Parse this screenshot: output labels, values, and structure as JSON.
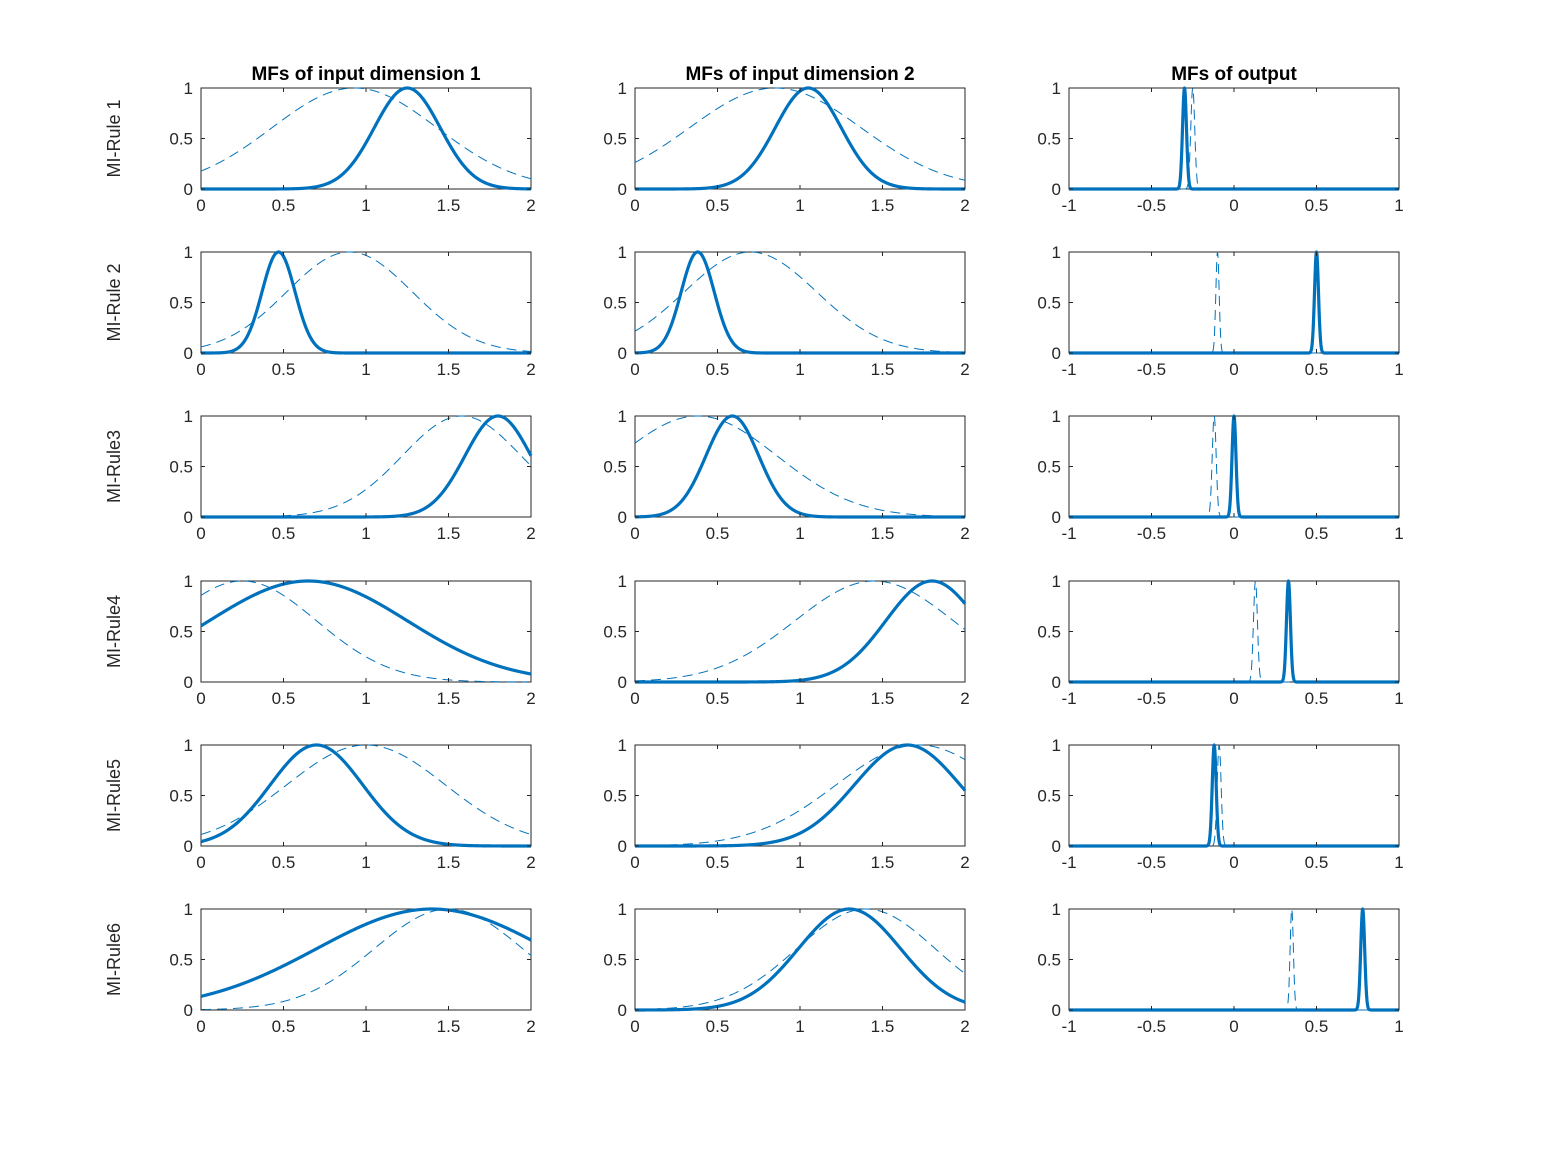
{
  "colors": {
    "line": "#0072BD",
    "axis": "#262626",
    "background": "#ffffff"
  },
  "chart_data": [
    {
      "type": "line",
      "row": 0,
      "col": 0,
      "title": "MFs of input dimension 1",
      "ylabel": "MI-Rule 1",
      "xlim": [
        0,
        2
      ],
      "ylim": [
        0,
        1
      ],
      "xticks": [
        "0",
        "0.5",
        "1",
        "1.5",
        "2"
      ],
      "yticks": [
        "0",
        "0.5",
        "1"
      ],
      "series": [
        {
          "style": "solid",
          "gaussian": {
            "center": 1.25,
            "sigma": 0.2
          }
        },
        {
          "style": "dashed",
          "gaussian": {
            "center": 0.93,
            "sigma": 0.5
          }
        }
      ]
    },
    {
      "type": "line",
      "row": 0,
      "col": 1,
      "title": "MFs of input dimension 2",
      "ylabel": "",
      "xlim": [
        0,
        2
      ],
      "ylim": [
        0,
        1
      ],
      "xticks": [
        "0",
        "0.5",
        "1",
        "1.5",
        "2"
      ],
      "yticks": [
        "0",
        "0.5",
        "1"
      ],
      "series": [
        {
          "style": "solid",
          "gaussian": {
            "center": 1.05,
            "sigma": 0.2
          }
        },
        {
          "style": "dashed",
          "gaussian": {
            "center": 0.85,
            "sigma": 0.52
          }
        }
      ]
    },
    {
      "type": "line",
      "row": 0,
      "col": 2,
      "title": "MFs of output",
      "ylabel": "",
      "xlim": [
        -1,
        1
      ],
      "ylim": [
        0,
        1
      ],
      "xticks": [
        "-1",
        "-0.5",
        "0",
        "0.5",
        "1"
      ],
      "yticks": [
        "0",
        "0.5",
        "1"
      ],
      "series": [
        {
          "style": "solid",
          "gaussian": {
            "center": -0.3,
            "sigma": 0.012
          }
        },
        {
          "style": "dashed",
          "gaussian": {
            "center": -0.25,
            "sigma": 0.012
          }
        }
      ]
    },
    {
      "type": "line",
      "row": 1,
      "col": 0,
      "title": "",
      "ylabel": "MI-Rule 2",
      "xlim": [
        0,
        2
      ],
      "ylim": [
        0,
        1
      ],
      "xticks": [
        "0",
        "0.5",
        "1",
        "1.5",
        "2"
      ],
      "yticks": [
        "0",
        "0.5",
        "1"
      ],
      "series": [
        {
          "style": "solid",
          "gaussian": {
            "center": 0.47,
            "sigma": 0.1
          }
        },
        {
          "style": "dashed",
          "gaussian": {
            "center": 0.9,
            "sigma": 0.38
          }
        }
      ]
    },
    {
      "type": "line",
      "row": 1,
      "col": 1,
      "title": "",
      "ylabel": "",
      "xlim": [
        0,
        2
      ],
      "ylim": [
        0,
        1
      ],
      "xticks": [
        "0",
        "0.5",
        "1",
        "1.5",
        "2"
      ],
      "yticks": [
        "0",
        "0.5",
        "1"
      ],
      "series": [
        {
          "style": "solid",
          "gaussian": {
            "center": 0.38,
            "sigma": 0.1
          }
        },
        {
          "style": "dashed",
          "gaussian": {
            "center": 0.7,
            "sigma": 0.4
          }
        }
      ]
    },
    {
      "type": "line",
      "row": 1,
      "col": 2,
      "title": "",
      "ylabel": "",
      "xlim": [
        -1,
        1
      ],
      "ylim": [
        0,
        1
      ],
      "xticks": [
        "-1",
        "-0.5",
        "0",
        "0.5",
        "1"
      ],
      "yticks": [
        "0",
        "0.5",
        "1"
      ],
      "series": [
        {
          "style": "solid",
          "gaussian": {
            "center": 0.5,
            "sigma": 0.012
          }
        },
        {
          "style": "dashed",
          "gaussian": {
            "center": -0.1,
            "sigma": 0.01
          }
        }
      ]
    },
    {
      "type": "line",
      "row": 2,
      "col": 0,
      "title": "",
      "ylabel": "MI-Rule3",
      "xlim": [
        0,
        2
      ],
      "ylim": [
        0,
        1
      ],
      "xticks": [
        "0",
        "0.5",
        "1",
        "1.5",
        "2"
      ],
      "yticks": [
        "0",
        "0.5",
        "1"
      ],
      "series": [
        {
          "style": "solid",
          "gaussian": {
            "center": 1.8,
            "sigma": 0.2
          }
        },
        {
          "style": "dashed",
          "gaussian": {
            "center": 1.58,
            "sigma": 0.36
          }
        }
      ]
    },
    {
      "type": "line",
      "row": 2,
      "col": 1,
      "title": "",
      "ylabel": "",
      "xlim": [
        0,
        2
      ],
      "ylim": [
        0,
        1
      ],
      "xticks": [
        "0",
        "0.5",
        "1",
        "1.5",
        "2"
      ],
      "yticks": [
        "0",
        "0.5",
        "1"
      ],
      "series": [
        {
          "style": "solid",
          "gaussian": {
            "center": 0.59,
            "sigma": 0.16
          }
        },
        {
          "style": "dashed",
          "gaussian": {
            "center": 0.38,
            "sigma": 0.48
          }
        }
      ]
    },
    {
      "type": "line",
      "row": 2,
      "col": 2,
      "title": "",
      "ylabel": "",
      "xlim": [
        -1,
        1
      ],
      "ylim": [
        0,
        1
      ],
      "xticks": [
        "-1",
        "-0.5",
        "0",
        "0.5",
        "1"
      ],
      "yticks": [
        "0",
        "0.5",
        "1"
      ],
      "series": [
        {
          "style": "solid",
          "gaussian": {
            "center": 0.0,
            "sigma": 0.012
          }
        },
        {
          "style": "dashed",
          "gaussian": {
            "center": -0.12,
            "sigma": 0.012
          }
        }
      ]
    },
    {
      "type": "line",
      "row": 3,
      "col": 0,
      "title": "",
      "ylabel": "MI-Rule4",
      "xlim": [
        0,
        2
      ],
      "ylim": [
        0,
        1
      ],
      "xticks": [
        "0",
        "0.5",
        "1",
        "1.5",
        "2"
      ],
      "yticks": [
        "0",
        "0.5",
        "1"
      ],
      "series": [
        {
          "style": "solid",
          "gaussian": {
            "center": 0.65,
            "sigma": 0.6
          }
        },
        {
          "style": "dashed",
          "gaussian": {
            "center": 0.25,
            "sigma": 0.45
          }
        }
      ]
    },
    {
      "type": "line",
      "row": 3,
      "col": 1,
      "title": "",
      "ylabel": "",
      "xlim": [
        0,
        2
      ],
      "ylim": [
        0,
        1
      ],
      "xticks": [
        "0",
        "0.5",
        "1",
        "1.5",
        "2"
      ],
      "yticks": [
        "0",
        "0.5",
        "1"
      ],
      "series": [
        {
          "style": "solid",
          "gaussian": {
            "center": 1.8,
            "sigma": 0.28
          }
        },
        {
          "style": "dashed",
          "gaussian": {
            "center": 1.45,
            "sigma": 0.48
          }
        }
      ]
    },
    {
      "type": "line",
      "row": 3,
      "col": 2,
      "title": "",
      "ylabel": "",
      "xlim": [
        -1,
        1
      ],
      "ylim": [
        0,
        1
      ],
      "xticks": [
        "-1",
        "-0.5",
        "0",
        "0.5",
        "1"
      ],
      "yticks": [
        "0",
        "0.5",
        "1"
      ],
      "series": [
        {
          "style": "solid",
          "gaussian": {
            "center": 0.33,
            "sigma": 0.012
          }
        },
        {
          "style": "dashed",
          "gaussian": {
            "center": 0.13,
            "sigma": 0.012
          }
        }
      ]
    },
    {
      "type": "line",
      "row": 4,
      "col": 0,
      "title": "",
      "ylabel": "MI-Rule5",
      "xlim": [
        0,
        2
      ],
      "ylim": [
        0,
        1
      ],
      "xticks": [
        "0",
        "0.5",
        "1",
        "1.5",
        "2"
      ],
      "yticks": [
        "0",
        "0.5",
        "1"
      ],
      "series": [
        {
          "style": "solid",
          "gaussian": {
            "center": 0.7,
            "sigma": 0.28
          }
        },
        {
          "style": "dashed",
          "gaussian": {
            "center": 1.0,
            "sigma": 0.48
          }
        }
      ]
    },
    {
      "type": "line",
      "row": 4,
      "col": 1,
      "title": "",
      "ylabel": "",
      "xlim": [
        0,
        2
      ],
      "ylim": [
        0,
        1
      ],
      "xticks": [
        "0",
        "0.5",
        "1",
        "1.5",
        "2"
      ],
      "yticks": [
        "0",
        "0.5",
        "1"
      ],
      "series": [
        {
          "style": "solid",
          "gaussian": {
            "center": 1.65,
            "sigma": 0.32
          }
        },
        {
          "style": "dashed",
          "gaussian": {
            "center": 1.72,
            "sigma": 0.5
          }
        }
      ]
    },
    {
      "type": "line",
      "row": 4,
      "col": 2,
      "title": "",
      "ylabel": "",
      "xlim": [
        -1,
        1
      ],
      "ylim": [
        0,
        1
      ],
      "xticks": [
        "-1",
        "-0.5",
        "0",
        "0.5",
        "1"
      ],
      "yticks": [
        "0",
        "0.5",
        "1"
      ],
      "series": [
        {
          "style": "solid",
          "gaussian": {
            "center": -0.12,
            "sigma": 0.012
          }
        },
        {
          "style": "dashed",
          "gaussian": {
            "center": -0.09,
            "sigma": 0.012
          }
        }
      ]
    },
    {
      "type": "line",
      "row": 5,
      "col": 0,
      "title": "",
      "ylabel": "MI-Rule6",
      "xlim": [
        0,
        2
      ],
      "ylim": [
        0,
        1
      ],
      "xticks": [
        "0",
        "0.5",
        "1",
        "1.5",
        "2"
      ],
      "yticks": [
        "0",
        "0.5",
        "1"
      ],
      "series": [
        {
          "style": "solid",
          "gaussian": {
            "center": 1.4,
            "sigma": 0.7
          }
        },
        {
          "style": "dashed",
          "gaussian": {
            "center": 1.5,
            "sigma": 0.45
          }
        }
      ]
    },
    {
      "type": "line",
      "row": 5,
      "col": 1,
      "title": "",
      "ylabel": "",
      "xlim": [
        0,
        2
      ],
      "ylim": [
        0,
        1
      ],
      "xticks": [
        "0",
        "0.5",
        "1",
        "1.5",
        "2"
      ],
      "yticks": [
        "0",
        "0.5",
        "1"
      ],
      "series": [
        {
          "style": "solid",
          "gaussian": {
            "center": 1.3,
            "sigma": 0.31
          }
        },
        {
          "style": "dashed",
          "gaussian": {
            "center": 1.4,
            "sigma": 0.42
          }
        }
      ]
    },
    {
      "type": "line",
      "row": 5,
      "col": 2,
      "title": "",
      "ylabel": "",
      "xlim": [
        -1,
        1
      ],
      "ylim": [
        0,
        1
      ],
      "xticks": [
        "-1",
        "-0.5",
        "0",
        "0.5",
        "1"
      ],
      "yticks": [
        "0",
        "0.5",
        "1"
      ],
      "series": [
        {
          "style": "solid",
          "gaussian": {
            "center": 0.78,
            "sigma": 0.012
          }
        },
        {
          "style": "dashed",
          "gaussian": {
            "center": 0.35,
            "sigma": 0.01
          }
        }
      ]
    }
  ]
}
